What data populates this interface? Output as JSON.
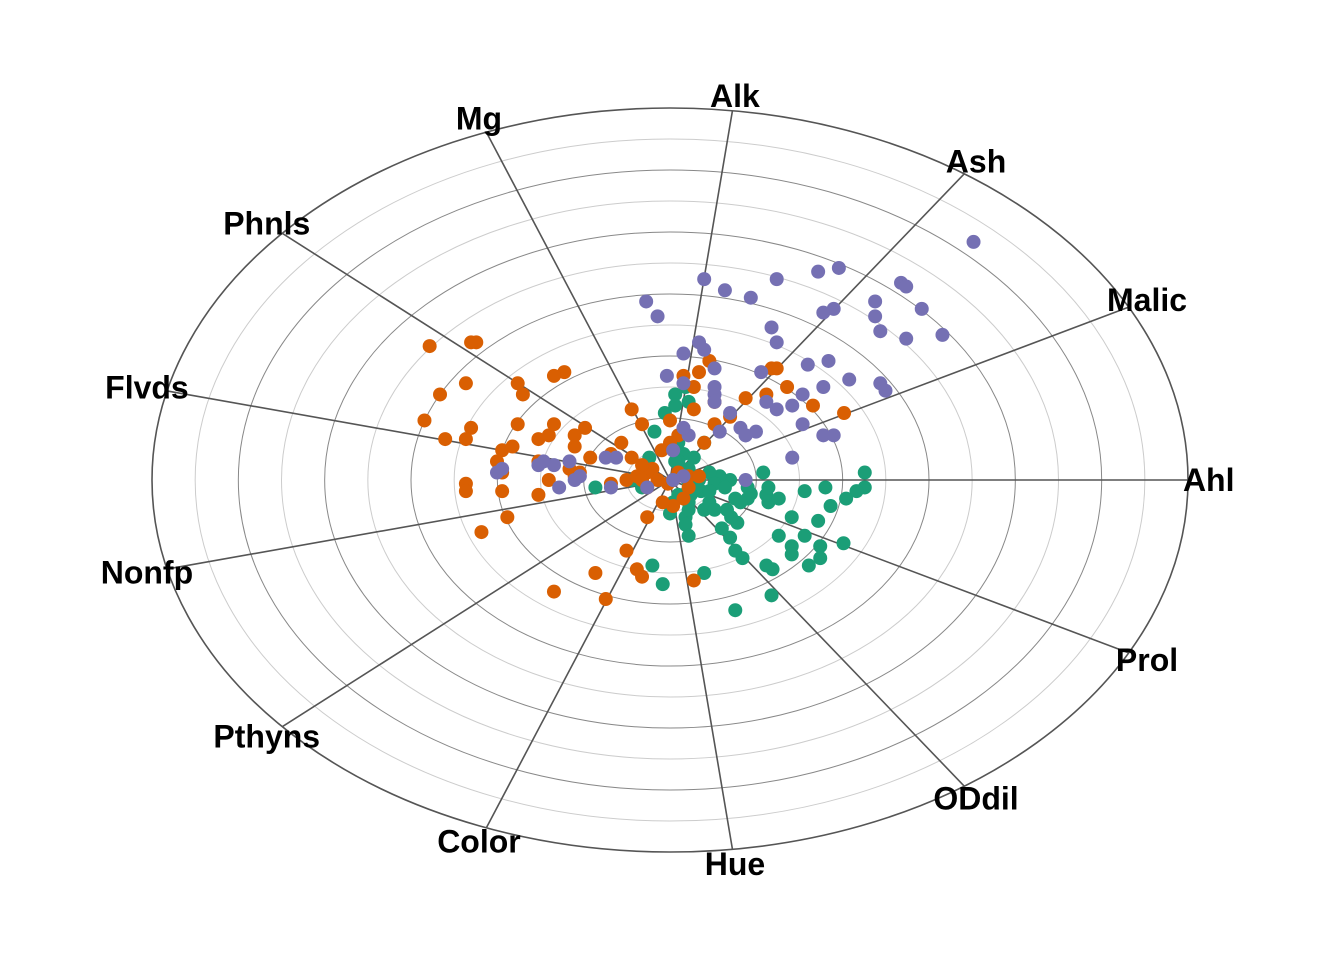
{
  "chart_data": {
    "type": "scatter",
    "title": "",
    "anchors": [
      "Ahl",
      "Malic",
      "Ash",
      "Alk",
      "Mg",
      "Phnls",
      "Flvds",
      "Nonfp",
      "Pthyns",
      "Color",
      "Hue",
      "ODdil",
      "Prol"
    ],
    "grid": true,
    "ring_count": 12,
    "colors": [
      "#1b9e77",
      "#d95f02",
      "#7570b3"
    ],
    "series": [
      {
        "color": "#1b9e77",
        "points": [
          [
            0.376,
            -0.02
          ],
          [
            0.376,
            0.02
          ],
          [
            0.36,
            0.03
          ],
          [
            0.34,
            0.05
          ],
          [
            0.31,
            0.07
          ],
          [
            0.3,
            0.02
          ],
          [
            0.26,
            0.03
          ],
          [
            0.235,
            0.1
          ],
          [
            0.26,
            0.15
          ],
          [
            0.335,
            0.17
          ],
          [
            0.29,
            0.178
          ],
          [
            0.29,
            0.21
          ],
          [
            0.268,
            0.23
          ],
          [
            0.235,
            0.178
          ],
          [
            0.235,
            0.2
          ],
          [
            0.198,
            0.24
          ],
          [
            0.186,
            0.23
          ],
          [
            0.14,
            0.21
          ],
          [
            0.126,
            0.19
          ],
          [
            0.116,
            0.155
          ],
          [
            0.1,
            0.13
          ],
          [
            0.13,
            0.115
          ],
          [
            0.118,
            0.1
          ],
          [
            0.11,
            0.08
          ],
          [
            0.21,
            0.15
          ],
          [
            0.19,
            0.06
          ],
          [
            0.186,
            0.04
          ],
          [
            0.156,
            0.037
          ],
          [
            0.15,
            0.02
          ],
          [
            0.116,
            0.0
          ],
          [
            0.096,
            -0.01
          ],
          [
            0.076,
            -0.02
          ],
          [
            0.056,
            0.0
          ],
          [
            0.046,
            0.02
          ],
          [
            0.04,
            0.04
          ],
          [
            0.036,
            0.06
          ],
          [
            0.03,
            0.1
          ],
          [
            0.02,
            -0.02
          ],
          [
            0.006,
            0.0
          ],
          [
            0.036,
            0.08
          ],
          [
            0.03,
            0.12
          ],
          [
            0.026,
            0.04
          ],
          [
            0.066,
            0.08
          ],
          [
            0.076,
            0.06
          ],
          [
            0.06,
            0.03
          ],
          [
            0.086,
            0.01
          ],
          [
            0.126,
            0.05
          ],
          [
            0.15,
            0.05
          ],
          [
            0.19,
            0.02
          ],
          [
            0.21,
            0.05
          ],
          [
            0.286,
            0.11
          ],
          [
            0.18,
            -0.02
          ],
          [
            0.086,
            0.08
          ],
          [
            0.036,
            -0.03
          ],
          [
            0.046,
            -0.06
          ],
          [
            0.026,
            -0.07
          ],
          [
            0.016,
            -0.1
          ],
          [
            0.016,
            -0.05
          ],
          [
            0.016,
            0.04
          ],
          [
            -0.04,
            -0.06
          ],
          [
            -0.074,
            0.0
          ],
          [
            -0.054,
            0.02
          ],
          [
            -0.144,
            0.02
          ],
          [
            -0.034,
            0.23
          ],
          [
            -0.014,
            0.28
          ],
          [
            0.066,
            -0.1
          ],
          [
            0.036,
            -0.21
          ],
          [
            0.03,
            -0.25
          ],
          [
            0.01,
            -0.23
          ],
          [
            0.01,
            -0.2
          ],
          [
            -0.03,
            -0.13
          ],
          [
            -0.01,
            -0.18
          ],
          [
            0.01,
            -0.05
          ],
          [
            0.076,
            0.03
          ],
          [
            0.106,
            0.02
          ],
          [
            0.136,
            0.06
          ],
          [
            0.036,
            0.01
          ],
          [
            0.0,
            0.09
          ],
          [
            0.036,
            0.15
          ],
          [
            0.066,
            0.25
          ],
          [
            0.126,
            0.35
          ],
          [
            0.196,
            0.31
          ],
          [
            0.006,
            0.06
          ],
          [
            0.05,
            0.02
          ]
        ]
      },
      {
        "color": "#d95f02",
        "points": [
          [
            0.336,
            -0.18
          ],
          [
            0.276,
            -0.2
          ],
          [
            0.206,
            -0.3
          ],
          [
            0.226,
            -0.25
          ],
          [
            0.196,
            -0.3
          ],
          [
            0.186,
            -0.23
          ],
          [
            0.146,
            -0.22
          ],
          [
            0.116,
            -0.17
          ],
          [
            0.086,
            -0.15
          ],
          [
            0.066,
            -0.1
          ],
          [
            0.086,
            -0.21
          ],
          [
            0.046,
            -0.25
          ],
          [
            0.056,
            -0.29
          ],
          [
            0.076,
            -0.32
          ],
          [
            0.026,
            -0.28
          ],
          [
            0.046,
            -0.19
          ],
          [
            0.0,
            -0.16
          ],
          [
            0.016,
            -0.12
          ],
          [
            0.0,
            -0.1
          ],
          [
            -0.016,
            -0.08
          ],
          [
            -0.034,
            -0.03
          ],
          [
            -0.044,
            -0.02
          ],
          [
            -0.054,
            -0.04
          ],
          [
            -0.054,
            -0.15
          ],
          [
            -0.074,
            -0.19
          ],
          [
            -0.164,
            -0.14
          ],
          [
            -0.204,
            -0.29
          ],
          [
            -0.224,
            -0.28
          ],
          [
            -0.284,
            -0.23
          ],
          [
            -0.294,
            -0.26
          ],
          [
            -0.394,
            -0.26
          ],
          [
            -0.384,
            -0.14
          ],
          [
            -0.324,
            -0.08
          ],
          [
            -0.254,
            -0.11
          ],
          [
            -0.234,
            -0.12
          ],
          [
            -0.184,
            -0.12
          ],
          [
            -0.224,
            -0.15
          ],
          [
            -0.294,
            -0.15
          ],
          [
            -0.394,
            -0.11
          ],
          [
            -0.434,
            -0.11
          ],
          [
            -0.474,
            -0.16
          ],
          [
            -0.444,
            -0.23
          ],
          [
            -0.464,
            -0.36
          ],
          [
            -0.374,
            -0.37
          ],
          [
            -0.304,
            -0.09
          ],
          [
            -0.254,
            -0.05
          ],
          [
            -0.184,
            -0.09
          ],
          [
            -0.094,
            -0.1
          ],
          [
            -0.074,
            -0.06
          ],
          [
            -0.114,
            -0.07
          ],
          [
            -0.154,
            -0.06
          ],
          [
            -0.184,
            -0.01
          ],
          [
            -0.174,
            -0.02
          ],
          [
            -0.234,
            0.0
          ],
          [
            -0.324,
            -0.02
          ],
          [
            -0.334,
            -0.05
          ],
          [
            -0.394,
            0.01
          ],
          [
            -0.394,
            0.03
          ],
          [
            -0.324,
            0.03
          ],
          [
            -0.254,
            0.04
          ],
          [
            -0.314,
            0.1
          ],
          [
            -0.364,
            0.14
          ],
          [
            -0.194,
            -0.03
          ],
          [
            -0.114,
            0.01
          ],
          [
            -0.084,
            0.0
          ],
          [
            -0.064,
            -0.01
          ],
          [
            -0.054,
            0.0
          ],
          [
            -0.044,
            0.02
          ],
          [
            -0.024,
            0.0
          ],
          [
            -0.004,
            0.01
          ],
          [
            0.006,
            0.0
          ],
          [
            0.016,
            -0.02
          ],
          [
            0.036,
            -0.01
          ],
          [
            0.036,
            0.02
          ],
          [
            0.056,
            -0.01
          ],
          [
            0.026,
            0.05
          ],
          [
            0.006,
            0.07
          ],
          [
            -0.014,
            0.06
          ],
          [
            -0.044,
            0.1
          ],
          [
            -0.084,
            0.19
          ],
          [
            -0.064,
            0.24
          ],
          [
            -0.144,
            0.25
          ],
          [
            -0.384,
            -0.37
          ],
          [
            -0.224,
            0.3
          ],
          [
            -0.124,
            0.32
          ],
          [
            -0.054,
            0.26
          ],
          [
            0.046,
            0.27
          ]
        ]
      },
      {
        "color": "#7570b3",
        "points": [
          [
            0.586,
            -0.64
          ],
          [
            0.446,
            -0.53
          ],
          [
            0.456,
            -0.52
          ],
          [
            0.486,
            -0.46
          ],
          [
            0.526,
            -0.39
          ],
          [
            0.456,
            -0.38
          ],
          [
            0.406,
            -0.4
          ],
          [
            0.396,
            -0.48
          ],
          [
            0.396,
            -0.44
          ],
          [
            0.406,
            -0.26
          ],
          [
            0.416,
            -0.24
          ],
          [
            0.346,
            -0.27
          ],
          [
            0.306,
            -0.32
          ],
          [
            0.296,
            -0.45
          ],
          [
            0.316,
            -0.46
          ],
          [
            0.296,
            -0.25
          ],
          [
            0.266,
            -0.31
          ],
          [
            0.256,
            -0.15
          ],
          [
            0.206,
            -0.19
          ],
          [
            0.186,
            -0.21
          ],
          [
            0.146,
            -0.12
          ],
          [
            0.136,
            -0.14
          ],
          [
            0.096,
            -0.13
          ],
          [
            0.086,
            -0.23
          ],
          [
            0.086,
            -0.3
          ],
          [
            0.056,
            -0.37
          ],
          [
            0.066,
            -0.54
          ],
          [
            -0.046,
            -0.48
          ],
          [
            -0.006,
            -0.28
          ],
          [
            0.106,
            -0.51
          ],
          [
            0.156,
            -0.49
          ],
          [
            0.086,
            -0.21
          ],
          [
            0.006,
            -0.08
          ],
          [
            0.036,
            -0.12
          ],
          [
            0.026,
            -0.01
          ],
          [
            0.006,
            0.0
          ],
          [
            -0.044,
            0.02
          ],
          [
            -0.114,
            0.02
          ],
          [
            -0.174,
            -0.01
          ],
          [
            -0.214,
            0.02
          ],
          [
            -0.224,
            -0.04
          ],
          [
            -0.184,
            0.0
          ],
          [
            -0.124,
            -0.06
          ],
          [
            -0.104,
            -0.06
          ],
          [
            -0.194,
            -0.05
          ],
          [
            -0.244,
            -0.05
          ],
          [
            -0.254,
            -0.04
          ],
          [
            -0.334,
            -0.02
          ],
          [
            -0.324,
            -0.03
          ],
          [
            -0.024,
            -0.44
          ],
          [
            0.026,
            -0.26
          ],
          [
            0.026,
            -0.14
          ],
          [
            0.166,
            -0.13
          ],
          [
            0.146,
            -0.12
          ],
          [
            0.086,
            -0.25
          ],
          [
            0.236,
            -0.2
          ],
          [
            0.206,
            -0.37
          ],
          [
            0.196,
            -0.41
          ],
          [
            0.296,
            -0.12
          ],
          [
            0.316,
            -0.12
          ],
          [
            0.236,
            -0.06
          ],
          [
            0.116,
            -0.18
          ],
          [
            0.066,
            -0.35
          ],
          [
            0.026,
            -0.34
          ],
          [
            0.326,
            -0.57
          ],
          [
            0.286,
            -0.56
          ],
          [
            0.206,
            -0.54
          ],
          [
            0.256,
            -0.23
          ],
          [
            0.176,
            -0.29
          ],
          [
            0.146,
            0.0
          ]
        ]
      }
    ]
  }
}
